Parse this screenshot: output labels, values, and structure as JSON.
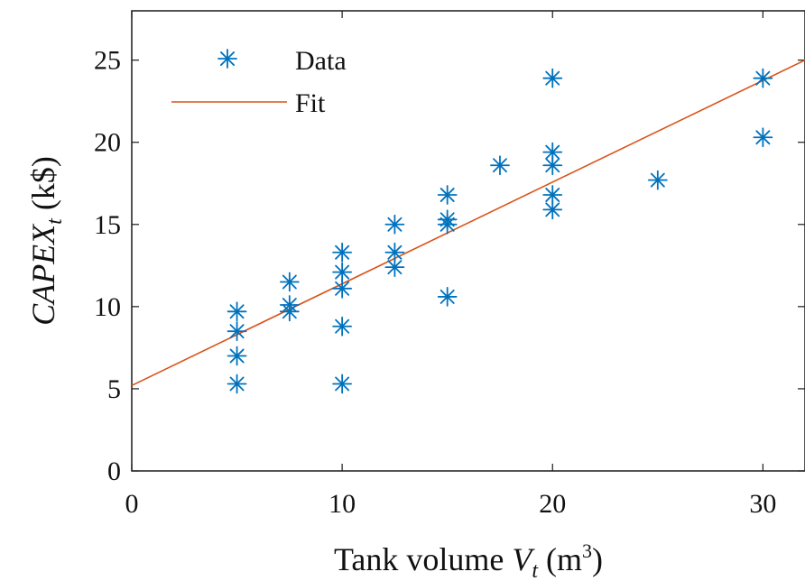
{
  "chart_data": {
    "type": "scatter",
    "xlabel": "Tank volume V_t (m³)",
    "ylabel": "CAPEX_t (k$)",
    "xlim": [
      0,
      32
    ],
    "ylim": [
      0,
      28
    ],
    "x_ticks": [
      0,
      10,
      20,
      30
    ],
    "y_ticks": [
      0,
      5,
      10,
      15,
      20,
      25
    ],
    "grid": false,
    "legend_position": "top-left",
    "series": [
      {
        "name": "Data",
        "kind": "scatter",
        "marker": "asterisk",
        "color": "#0072BD",
        "points": [
          {
            "x": 5,
            "y": 9.7
          },
          {
            "x": 5,
            "y": 8.5
          },
          {
            "x": 5,
            "y": 7.0
          },
          {
            "x": 5,
            "y": 5.3
          },
          {
            "x": 7.5,
            "y": 11.5
          },
          {
            "x": 7.5,
            "y": 10.1
          },
          {
            "x": 7.5,
            "y": 9.7
          },
          {
            "x": 10,
            "y": 13.3
          },
          {
            "x": 10,
            "y": 12.1
          },
          {
            "x": 10,
            "y": 11.1
          },
          {
            "x": 10,
            "y": 8.8
          },
          {
            "x": 10,
            "y": 5.3
          },
          {
            "x": 12.5,
            "y": 15.0
          },
          {
            "x": 12.5,
            "y": 13.3
          },
          {
            "x": 12.5,
            "y": 12.4
          },
          {
            "x": 15,
            "y": 16.8
          },
          {
            "x": 15,
            "y": 15.3
          },
          {
            "x": 15,
            "y": 15.0
          },
          {
            "x": 15,
            "y": 10.6
          },
          {
            "x": 17.5,
            "y": 18.6
          },
          {
            "x": 20,
            "y": 23.9
          },
          {
            "x": 20,
            "y": 19.4
          },
          {
            "x": 20,
            "y": 18.6
          },
          {
            "x": 20,
            "y": 16.8
          },
          {
            "x": 20,
            "y": 15.9
          },
          {
            "x": 25,
            "y": 17.7
          },
          {
            "x": 30,
            "y": 23.9
          },
          {
            "x": 30,
            "y": 20.3
          }
        ]
      },
      {
        "name": "Fit",
        "kind": "line",
        "color": "#D95319",
        "points": [
          {
            "x": 0,
            "y": 5.2
          },
          {
            "x": 32,
            "y": 25.0
          }
        ]
      }
    ]
  }
}
